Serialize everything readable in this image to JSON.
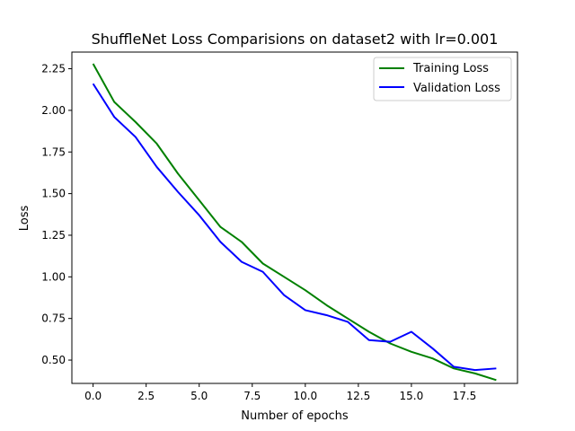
{
  "chart_data": {
    "type": "line",
    "title": "ShuffleNet Loss Comparisions on dataset2 with lr=0.001",
    "xlabel": "Number of epochs",
    "ylabel": "Loss",
    "xlim": [
      -1,
      20
    ],
    "ylim": [
      0.36,
      2.35
    ],
    "x_ticks": [
      0.0,
      2.5,
      5.0,
      7.5,
      10.0,
      12.5,
      15.0,
      17.5
    ],
    "x_tick_labels": [
      "0.0",
      "2.5",
      "5.0",
      "7.5",
      "10.0",
      "12.5",
      "15.0",
      "17.5"
    ],
    "y_ticks": [
      0.5,
      0.75,
      1.0,
      1.25,
      1.5,
      1.75,
      2.0,
      2.25
    ],
    "y_tick_labels": [
      "0.50",
      "0.75",
      "1.00",
      "1.25",
      "1.50",
      "1.75",
      "2.00",
      "2.25"
    ],
    "grid": false,
    "legend_position": "top-right",
    "x": [
      0,
      1,
      2,
      3,
      4,
      5,
      6,
      7,
      8,
      9,
      10,
      11,
      12,
      13,
      14,
      15,
      16,
      17,
      18,
      19
    ],
    "series": [
      {
        "name": "Training Loss",
        "color": "#008000",
        "values": [
          2.28,
          2.05,
          1.93,
          1.8,
          1.62,
          1.46,
          1.3,
          1.21,
          1.08,
          1.0,
          0.92,
          0.83,
          0.75,
          0.67,
          0.6,
          0.55,
          0.51,
          0.45,
          0.42,
          0.38
        ]
      },
      {
        "name": "Validation Loss",
        "color": "#0000ff",
        "values": [
          2.16,
          1.96,
          1.84,
          1.66,
          1.51,
          1.37,
          1.21,
          1.09,
          1.03,
          0.89,
          0.8,
          0.77,
          0.73,
          0.62,
          0.61,
          0.67,
          0.57,
          0.46,
          0.44,
          0.45
        ]
      }
    ]
  }
}
